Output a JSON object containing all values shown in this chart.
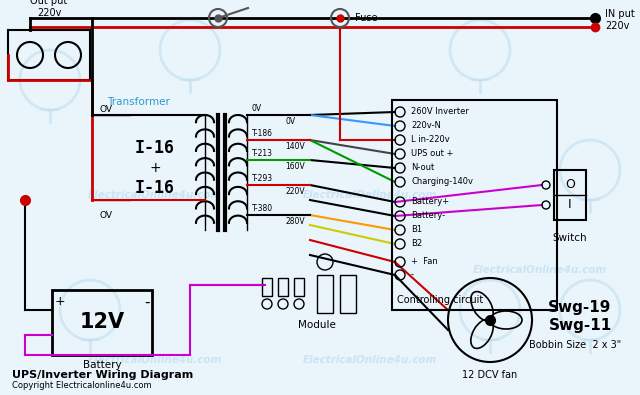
{
  "bg_color": "#eaf4fb",
  "title": "UPS/Inverter Wiring Diagram",
  "copyright": "Copyright Electricalonline4u.com",
  "watermark": "ElectricalOnline4u.com",
  "outlet_label": "Out put\n220v",
  "input_label": "IN put\n220v",
  "fuse_label": "Fuse",
  "transformer_label": "Transformer",
  "battery_label": "Battery",
  "battery_voltage": "12V",
  "module_label": "Module",
  "fan_label": "12 DCV fan",
  "switch_label": "Switch",
  "controlling_label": "Controlling circuit",
  "swg19": "Swg-19",
  "swg11": "Swg-11",
  "bobbin": "Bobbin Size  2 x 3\"",
  "ctrl_labels": [
    "260V Inverter",
    "220v-N",
    "L in-220v",
    "UPS out +",
    "N-out",
    "Charging-140v",
    "Battery+",
    "Battery-",
    "B1",
    "B2",
    "+  Fan",
    "-"
  ],
  "wire_colors": {
    "black": "#000000",
    "red": "#cc0000",
    "blue": "#3399ff",
    "green": "#009900",
    "gray": "#777777",
    "magenta": "#cc00cc",
    "orange": "#ff9900",
    "yellow": "#cccc00",
    "darkgray": "#444444"
  }
}
